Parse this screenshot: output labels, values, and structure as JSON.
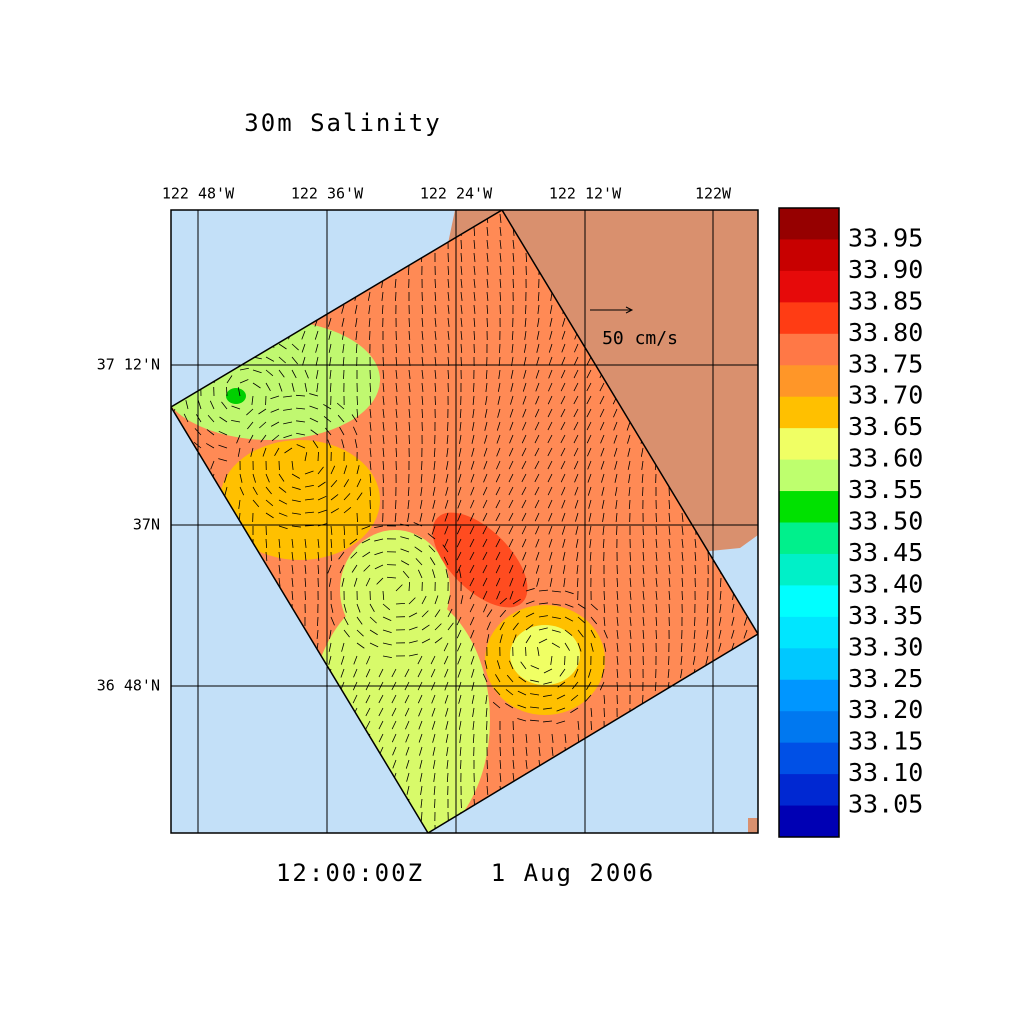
{
  "title": "30m Salinity",
  "longitude_labels": [
    "122 48'W",
    "122 36'W",
    "122 24'W",
    "122 12'W",
    "122W"
  ],
  "latitude_labels": [
    "37 12'N",
    "37N",
    "36 48'N"
  ],
  "vector_scale_label": "50 cm/s",
  "time_label": "12:00:00Z",
  "date_label": "1 Aug 2006",
  "colorbar": {
    "labels": [
      "33.95",
      "33.90",
      "33.85",
      "33.80",
      "33.75",
      "33.70",
      "33.65",
      "33.60",
      "33.55",
      "33.50",
      "33.45",
      "33.40",
      "33.35",
      "33.30",
      "33.25",
      "33.20",
      "33.15",
      "33.10",
      "33.05"
    ],
    "colors": [
      "#960000",
      "#c80000",
      "#e60a0a",
      "#ff3c14",
      "#ff7846",
      "#ff9628",
      "#ffc000",
      "#f0ff64",
      "#beff6e",
      "#00e100",
      "#00f08c",
      "#00f0c8",
      "#00ffff",
      "#00e6ff",
      "#00c8ff",
      "#0096ff",
      "#0078f0",
      "#0050e6",
      "#0028d2",
      "#0000b4"
    ]
  }
}
